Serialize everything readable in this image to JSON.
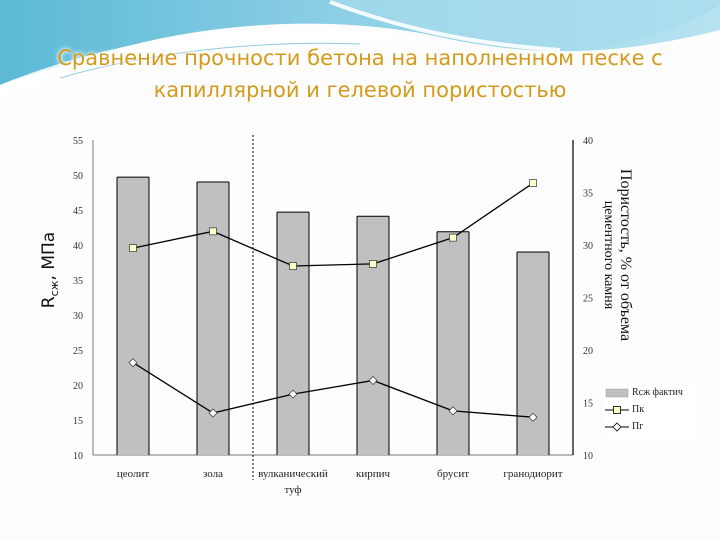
{
  "slide": {
    "title_line1": "Сравнение прочности бетона на наполненном песке с",
    "title_line2": "капиллярной и гелевой пористостью",
    "title_color": "#d49a1c",
    "background_accent": "#7ec8dc"
  },
  "axes": {
    "left_label_main": "R",
    "left_label_sub": "сж",
    "left_label_unit": ", МПа",
    "right_label_line1": "Пористость, % от объема",
    "right_label_line2": "цементного камня"
  },
  "legend": {
    "bars": "Rсж фактич",
    "pk": "Пк",
    "pg": "Пг"
  },
  "chart_data": {
    "type": "bar",
    "title": "Сравнение прочности бетона на наполненном песке с капиллярной и гелевой пористостью",
    "categories": [
      "цеолит",
      "зола",
      "вулканический туф",
      "кирпич",
      "брусит",
      "гранодиорит"
    ],
    "xlabel": "",
    "ylabel": "Rсж, МПа",
    "ylim": [
      10,
      55
    ],
    "yticks": [
      10,
      15,
      20,
      25,
      30,
      35,
      40,
      45,
      50,
      55
    ],
    "y2label": "Пористость, % от объема цементного камня",
    "y2lim": [
      10,
      40
    ],
    "y2ticks": [
      10,
      15,
      20,
      25,
      30,
      35,
      40
    ],
    "grid": false,
    "legend_position": "right-bottom",
    "separator_after_category_index": 1,
    "series": [
      {
        "name": "Rсж фактич",
        "type": "bar",
        "axis": "left",
        "color": "#c0c0c0",
        "values": [
          49.7,
          49.0,
          44.7,
          44.1,
          41.9,
          39.0
        ]
      },
      {
        "name": "Пк",
        "type": "line",
        "axis": "right",
        "marker": "square",
        "marker_color": "#ffffcc",
        "values": [
          29.7,
          31.3,
          28.0,
          28.2,
          30.7,
          35.9
        ]
      },
      {
        "name": "Пг",
        "type": "line",
        "axis": "right",
        "marker": "diamond",
        "marker_color": "#ffffff",
        "values": [
          18.8,
          14.0,
          15.8,
          17.1,
          14.2,
          13.6
        ]
      }
    ]
  }
}
